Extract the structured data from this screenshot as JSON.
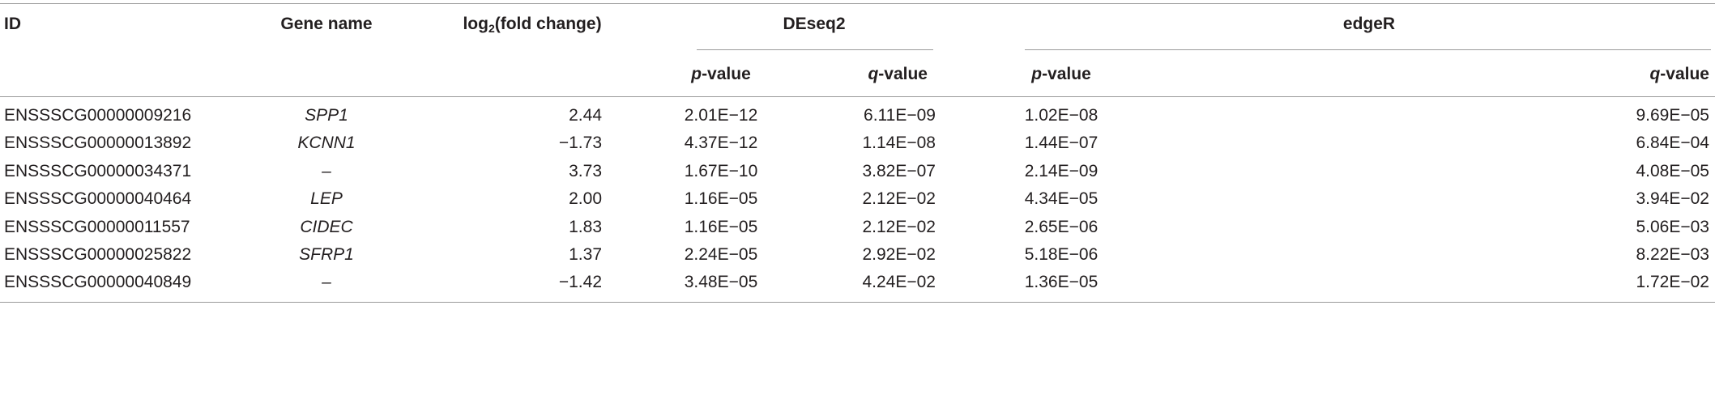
{
  "table": {
    "header": {
      "id": "ID",
      "gene_name": "Gene name",
      "log2fc": {
        "pre": "log",
        "sub": "2",
        "post": "(fold change)"
      },
      "groups": [
        "DEseq2",
        "edgeR"
      ],
      "subheaders": [
        {
          "italic": "p",
          "rest": "-value"
        },
        {
          "italic": "q",
          "rest": "-value"
        },
        {
          "italic": "p",
          "rest": "-value"
        },
        {
          "italic": "q",
          "rest": "-value"
        }
      ]
    },
    "rows": [
      [
        "ENSSSCG00000009216",
        "SPP1",
        "2.44",
        "2.01E−12",
        "6.11E−09",
        "1.02E−08",
        "9.69E−05"
      ],
      [
        "ENSSSCG00000013892",
        "KCNN1",
        "−1.73",
        "4.37E−12",
        "1.14E−08",
        "1.44E−07",
        "6.84E−04"
      ],
      [
        "ENSSSCG00000034371",
        "–",
        "3.73",
        "1.67E−10",
        "3.82E−07",
        "2.14E−09",
        "4.08E−05"
      ],
      [
        "ENSSSCG00000040464",
        "LEP",
        "2.00",
        "1.16E−05",
        "2.12E−02",
        "4.34E−05",
        "3.94E−02"
      ],
      [
        "ENSSSCG00000011557",
        "CIDEC",
        "1.83",
        "1.16E−05",
        "2.12E−02",
        "2.65E−06",
        "5.06E−03"
      ],
      [
        "ENSSSCG00000025822",
        "SFRP1",
        "1.37",
        "2.24E−05",
        "2.92E−02",
        "5.18E−06",
        "8.22E−03"
      ],
      [
        "ENSSSCG00000040849",
        "–",
        "−1.42",
        "3.48E−05",
        "4.24E−02",
        "1.36E−05",
        "1.72E−02"
      ]
    ]
  }
}
